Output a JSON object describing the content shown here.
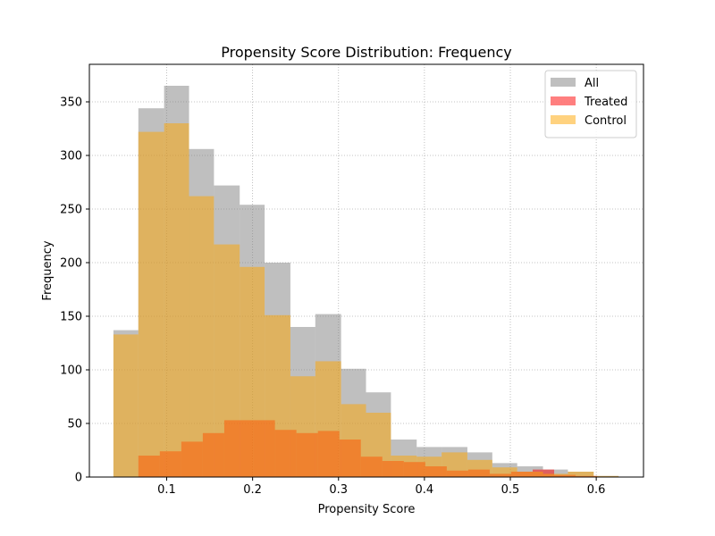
{
  "chart_data": {
    "type": "bar",
    "title": "Propensity Score Distribution: Frequency",
    "xlabel": "Propensity Score",
    "ylabel": "Frequency",
    "xlim": [
      0.01,
      0.655
    ],
    "ylim": [
      0,
      385
    ],
    "xticks": [
      0.1,
      0.2,
      0.3,
      0.4,
      0.5,
      0.6
    ],
    "yticks": [
      0,
      50,
      100,
      150,
      200,
      250,
      300,
      350
    ],
    "grid": true,
    "grid_style": "dotted",
    "legend_position": "top-right",
    "bin_width": 0.0294,
    "series": [
      {
        "name": "All",
        "color": "#808080",
        "alpha": 0.5,
        "bins": [
          {
            "x0": 0.038,
            "x1": 0.067,
            "count": 137
          },
          {
            "x0": 0.067,
            "x1": 0.097,
            "count": 344
          },
          {
            "x0": 0.097,
            "x1": 0.126,
            "count": 365
          },
          {
            "x0": 0.126,
            "x1": 0.155,
            "count": 306
          },
          {
            "x0": 0.155,
            "x1": 0.185,
            "count": 272
          },
          {
            "x0": 0.185,
            "x1": 0.214,
            "count": 254
          },
          {
            "x0": 0.214,
            "x1": 0.244,
            "count": 200
          },
          {
            "x0": 0.244,
            "x1": 0.273,
            "count": 140
          },
          {
            "x0": 0.273,
            "x1": 0.303,
            "count": 152
          },
          {
            "x0": 0.303,
            "x1": 0.332,
            "count": 101
          },
          {
            "x0": 0.332,
            "x1": 0.361,
            "count": 79
          },
          {
            "x0": 0.361,
            "x1": 0.391,
            "count": 35
          },
          {
            "x0": 0.391,
            "x1": 0.42,
            "count": 28
          },
          {
            "x0": 0.42,
            "x1": 0.45,
            "count": 28
          },
          {
            "x0": 0.45,
            "x1": 0.479,
            "count": 23
          },
          {
            "x0": 0.479,
            "x1": 0.508,
            "count": 13
          },
          {
            "x0": 0.508,
            "x1": 0.538,
            "count": 10
          },
          {
            "x0": 0.538,
            "x1": 0.567,
            "count": 7
          },
          {
            "x0": 0.567,
            "x1": 0.597,
            "count": 5
          },
          {
            "x0": 0.597,
            "x1": 0.626,
            "count": 1
          }
        ]
      },
      {
        "name": "Treated",
        "color": "#ff0000",
        "alpha": 0.5,
        "bins": [
          {
            "x0": 0.067,
            "x1": 0.092,
            "count": 20
          },
          {
            "x0": 0.092,
            "x1": 0.117,
            "count": 24
          },
          {
            "x0": 0.117,
            "x1": 0.142,
            "count": 33
          },
          {
            "x0": 0.142,
            "x1": 0.167,
            "count": 41
          },
          {
            "x0": 0.167,
            "x1": 0.201,
            "count": 53
          },
          {
            "x0": 0.201,
            "x1": 0.226,
            "count": 53
          },
          {
            "x0": 0.226,
            "x1": 0.251,
            "count": 44
          },
          {
            "x0": 0.251,
            "x1": 0.276,
            "count": 41
          },
          {
            "x0": 0.276,
            "x1": 0.301,
            "count": 43
          },
          {
            "x0": 0.301,
            "x1": 0.326,
            "count": 35
          },
          {
            "x0": 0.326,
            "x1": 0.351,
            "count": 19
          },
          {
            "x0": 0.351,
            "x1": 0.376,
            "count": 15
          },
          {
            "x0": 0.376,
            "x1": 0.401,
            "count": 14
          },
          {
            "x0": 0.401,
            "x1": 0.426,
            "count": 10
          },
          {
            "x0": 0.426,
            "x1": 0.451,
            "count": 6
          },
          {
            "x0": 0.451,
            "x1": 0.476,
            "count": 7
          },
          {
            "x0": 0.476,
            "x1": 0.501,
            "count": 3
          },
          {
            "x0": 0.501,
            "x1": 0.526,
            "count": 5
          },
          {
            "x0": 0.526,
            "x1": 0.551,
            "count": 7
          },
          {
            "x0": 0.551,
            "x1": 0.576,
            "count": 2
          },
          {
            "x0": 0.576,
            "x1": 0.601,
            "count": 1
          }
        ]
      },
      {
        "name": "Control",
        "color": "#ffa500",
        "alpha": 0.5,
        "bins": [
          {
            "x0": 0.038,
            "x1": 0.067,
            "count": 133
          },
          {
            "x0": 0.067,
            "x1": 0.097,
            "count": 322
          },
          {
            "x0": 0.097,
            "x1": 0.126,
            "count": 330
          },
          {
            "x0": 0.126,
            "x1": 0.155,
            "count": 262
          },
          {
            "x0": 0.155,
            "x1": 0.185,
            "count": 217
          },
          {
            "x0": 0.185,
            "x1": 0.214,
            "count": 196
          },
          {
            "x0": 0.214,
            "x1": 0.244,
            "count": 151
          },
          {
            "x0": 0.244,
            "x1": 0.273,
            "count": 94
          },
          {
            "x0": 0.273,
            "x1": 0.303,
            "count": 108
          },
          {
            "x0": 0.303,
            "x1": 0.332,
            "count": 68
          },
          {
            "x0": 0.332,
            "x1": 0.361,
            "count": 60
          },
          {
            "x0": 0.361,
            "x1": 0.391,
            "count": 20
          },
          {
            "x0": 0.391,
            "x1": 0.42,
            "count": 19
          },
          {
            "x0": 0.42,
            "x1": 0.45,
            "count": 23
          },
          {
            "x0": 0.45,
            "x1": 0.479,
            "count": 16
          },
          {
            "x0": 0.479,
            "x1": 0.508,
            "count": 9
          },
          {
            "x0": 0.508,
            "x1": 0.538,
            "count": 5
          },
          {
            "x0": 0.538,
            "x1": 0.567,
            "count": 3
          },
          {
            "x0": 0.567,
            "x1": 0.597,
            "count": 5
          },
          {
            "x0": 0.597,
            "x1": 0.626,
            "count": 1
          }
        ]
      }
    ]
  }
}
